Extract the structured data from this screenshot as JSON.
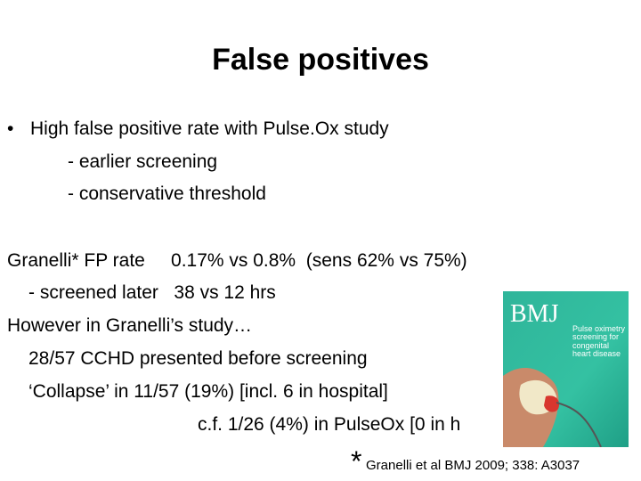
{
  "slide": {
    "title": "False positives",
    "bullet": {
      "marker": "•",
      "text": "High false positive rate with Pulse.Ox study",
      "sub": [
        "- earlier screening",
        "- conservative threshold"
      ]
    },
    "body": [
      "Granelli* FP rate     0.17% vs 0.8%  (sens 62% vs 75%)",
      "- screened later   38 vs 12 hrs",
      "However in Granelli’s study…",
      "28/57 CCHD presented before screening",
      "‘Collapse’ in 11/57 (19%) [incl. 6 in hospital]",
      "c.f. 1/26 (4%) in PulseOx [0 in h"
    ],
    "footnote": {
      "marker": "*",
      "text": "Granelli et al BMJ 2009; 338: A3037"
    },
    "image": {
      "masthead": "BMJ",
      "headline": "Pulse oximetry screening for congenital heart disease"
    }
  }
}
